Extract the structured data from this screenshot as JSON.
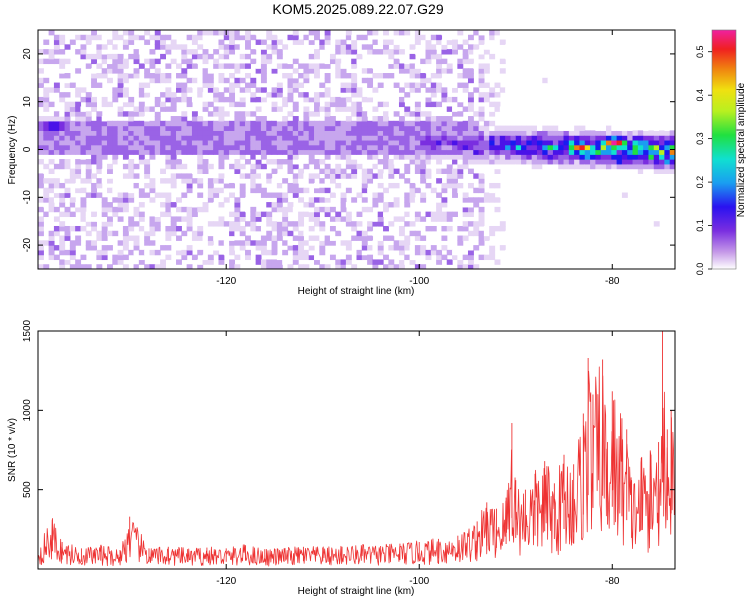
{
  "title": "KOM5.2025.089.22.07.G29",
  "colors": {
    "snr_line": "#ee3333",
    "spectrogram_palette": [
      "#ffffff",
      "#e6d6f5",
      "#c7a6ee",
      "#9a63e6",
      "#7a2ee0",
      "#4a12e8",
      "#1a1af0",
      "#1a9ef0",
      "#10e0d0",
      "#20e040",
      "#b8f020",
      "#f0e010",
      "#f08010",
      "#f02020",
      "#f020a0"
    ]
  },
  "chart_data": [
    {
      "type": "heatmap",
      "name": "spectrogram",
      "title": "KOM5.2025.089.22.07.G29",
      "xlabel": "Height of straight line (km)",
      "ylabel": "Frequency (Hz)",
      "xlim": [
        -139.5,
        -73.5
      ],
      "ylim": [
        -25,
        25
      ],
      "xticks": [
        -120,
        -100,
        -80
      ],
      "yticks": [
        -20,
        -10,
        0,
        10,
        20
      ],
      "colorbar": {
        "label": "Normalized spectral amplitude",
        "range": [
          0.0,
          0.55
        ],
        "ticks": [
          0.0,
          0.1,
          0.2,
          0.3,
          0.4,
          0.5
        ]
      },
      "features": [
        {
          "desc": "broadband noise",
          "x_range": [
            -139.5,
            -94
          ],
          "f_range": [
            -25,
            25
          ],
          "amplitude": 0.1
        },
        {
          "desc": "signal band",
          "x_range": [
            -100,
            -73.5
          ],
          "f_center": [
            1,
            -1
          ],
          "bandwidth_hz": 6,
          "amplitude": [
            0.15,
            0.5
          ]
        },
        {
          "desc": "peak",
          "x": -80,
          "f": 1,
          "amplitude": 0.53
        },
        {
          "desc": "peak",
          "x": -83.5,
          "f": 0,
          "amplitude": 0.5
        },
        {
          "desc": "peak",
          "x": -138,
          "f": 4.5,
          "amplitude": 0.25
        }
      ]
    },
    {
      "type": "line",
      "name": "snr",
      "xlabel": "Height of straight line (km)",
      "ylabel": "SNR (10 * v/v)",
      "xlim": [
        -139.5,
        -73.5
      ],
      "ylim": [
        0,
        1500
      ],
      "xticks": [
        -120,
        -100,
        -80
      ],
      "yticks": [
        500,
        1000,
        1500
      ],
      "series": [
        {
          "name": "SNR",
          "x": [
            -139.5,
            -138,
            -137,
            -135,
            -133,
            -131,
            -130,
            -128,
            -126,
            -124,
            -122,
            -120,
            -118,
            -116,
            -114,
            -112,
            -110,
            -108,
            -106,
            -104,
            -102,
            -100,
            -98,
            -96,
            -94,
            -93,
            -92,
            -91,
            -90.4,
            -90,
            -89,
            -88,
            -87,
            -86,
            -85,
            -84,
            -83,
            -82.5,
            -82,
            -81,
            -80.5,
            -80,
            -79,
            -78.5,
            -78,
            -77,
            -76,
            -75.2,
            -74.8,
            -74.3,
            -73.9,
            -73.5
          ],
          "values": [
            140,
            320,
            170,
            130,
            150,
            120,
            330,
            130,
            140,
            125,
            135,
            130,
            150,
            125,
            130,
            140,
            135,
            140,
            150,
            145,
            160,
            170,
            190,
            210,
            300,
            420,
            380,
            450,
            920,
            560,
            500,
            600,
            680,
            540,
            720,
            660,
            980,
            1330,
            1100,
            1320,
            800,
            1120,
            950,
            880,
            560,
            700,
            720,
            800,
            1560,
            880,
            1000,
            700
          ]
        }
      ]
    }
  ]
}
